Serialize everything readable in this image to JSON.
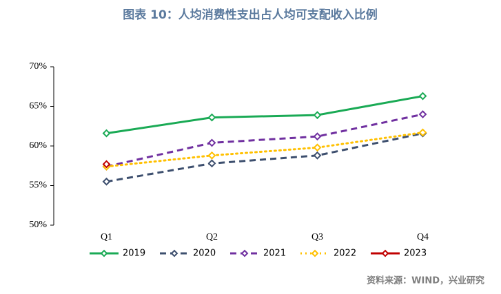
{
  "chart_data": {
    "type": "line",
    "title": "图表 10：人均消费性支出占人均可支配收入比例",
    "categories": [
      "Q1",
      "Q2",
      "Q3",
      "Q4"
    ],
    "ylim": [
      50,
      70
    ],
    "yticks": [
      {
        "value": 50,
        "label": "50%"
      },
      {
        "value": 55,
        "label": "55%"
      },
      {
        "value": 60,
        "label": "60%"
      },
      {
        "value": 65,
        "label": "65%"
      },
      {
        "value": 70,
        "label": "70%"
      }
    ],
    "grid": false,
    "legend": "bottom",
    "series": [
      {
        "name": "2019",
        "color": "#1aaa55",
        "dash": "solid",
        "values": [
          61.6,
          63.6,
          63.9,
          66.3
        ]
      },
      {
        "name": "2020",
        "color": "#3d4f6e",
        "dash": "dashed",
        "values": [
          55.5,
          57.8,
          58.8,
          61.6
        ]
      },
      {
        "name": "2021",
        "color": "#7030a0",
        "dash": "dashed",
        "values": [
          57.4,
          60.4,
          61.2,
          64.0
        ]
      },
      {
        "name": "2022",
        "color": "#ffc000",
        "dash": "dotted",
        "values": [
          57.4,
          58.8,
          59.8,
          61.7
        ]
      },
      {
        "name": "2023",
        "color": "#c00000",
        "dash": "solid",
        "values": [
          57.7,
          null,
          null,
          null
        ]
      }
    ],
    "source": "资料来源：WIND，兴业研究"
  }
}
